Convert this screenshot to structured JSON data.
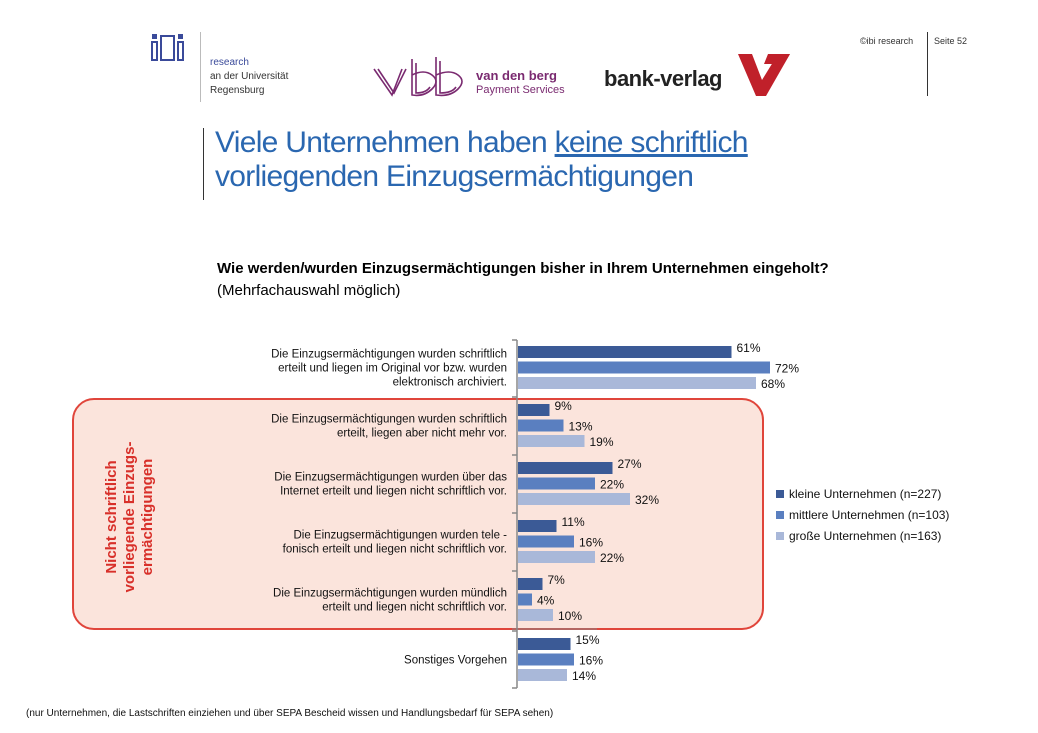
{
  "header": {
    "ibi_logo_text": "ibi",
    "ibi_lines": [
      "research",
      "an der Universität",
      "Regensburg"
    ],
    "vdb_line1": "van den berg",
    "vdb_line2": "Payment Services",
    "bank_verlag": "bank-verlag",
    "copyright": "©ibi research",
    "page": "Seite 52"
  },
  "title": {
    "part1": "Viele Unternehmen haben ",
    "underlined": "keine schriftlich",
    "part2": "vorliegenden Einzugsermächtigungen"
  },
  "question": {
    "main": "Wie werden/wurden Einzugsermächtigungen bisher in Ihrem Unternehmen eingeholt?",
    "note": "(Mehrfachauswahl möglich)"
  },
  "highlight": {
    "label_lines": [
      "Nicht schriftlich",
      "vorliegende Einzugs-",
      "ermächtigungen"
    ]
  },
  "footnote": "(nur Unternehmen, die Lastschriften einziehen und über SEPA Bescheid wissen und Handlungsbedarf für SEPA sehen)",
  "colors": {
    "series": [
      "#3b5a96",
      "#5a7fc0",
      "#a9b8d9"
    ],
    "highlight_border": "#e0453b",
    "highlight_fill": "#fbe4dc",
    "title": "#2a67b0"
  },
  "chart_data": {
    "type": "bar",
    "orientation": "horizontal",
    "categories": [
      [
        "Die Einzugsermächtigungen wurden schriftlich",
        "erteilt und liegen im Original vor bzw. wurden",
        "elektronisch archiviert."
      ],
      [
        "Die Einzugsermächtigungen wurden schriftlich",
        "erteilt, liegen aber nicht mehr vor."
      ],
      [
        "Die Einzugsermächtigungen wurden über das",
        "Internet erteilt und liegen nicht schriftlich vor."
      ],
      [
        "Die Einzugsermächtigungen wurden tele -",
        "fonisch erteilt und liegen nicht schriftlich vor."
      ],
      [
        "Die Einzugsermächtigungen wurden mündlich",
        "erteilt und liegen nicht schriftlich vor."
      ],
      [
        "Sonstiges Vorgehen"
      ]
    ],
    "series": [
      {
        "name": "kleine Unternehmen (n=227)",
        "values": [
          61,
          9,
          27,
          11,
          7,
          15
        ],
        "labels": [
          "61%",
          "9%",
          "27%",
          "11%",
          "7%",
          "15%"
        ]
      },
      {
        "name": "mittlere Unternehmen (n=103)",
        "values": [
          72,
          13,
          22,
          16,
          4,
          16
        ],
        "labels": [
          "72%",
          "13%",
          "22%",
          "16%",
          "4%",
          "16%"
        ]
      },
      {
        "name": "große Unternehmen (n=163)",
        "values": [
          68,
          19,
          32,
          22,
          10,
          14
        ],
        "labels": [
          "68%",
          "19%",
          "32%",
          "22%",
          "10%",
          "14%"
        ]
      }
    ],
    "xlim": [
      0,
      100
    ],
    "legend_position": "right"
  }
}
